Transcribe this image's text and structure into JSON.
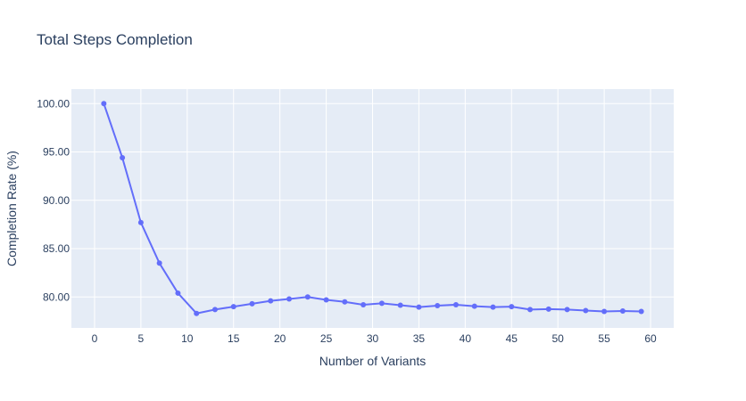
{
  "chart_data": {
    "type": "line",
    "title": "Total Steps Completion",
    "xlabel": "Number of Variants",
    "ylabel": "Completion Rate (%)",
    "xlim": [
      -2.5,
      62.5
    ],
    "ylim": [
      76.8,
      101.5
    ],
    "x_ticks": [
      0,
      5,
      10,
      15,
      20,
      25,
      30,
      35,
      40,
      45,
      50,
      55,
      60
    ],
    "x_tick_labels": [
      "0",
      "5",
      "10",
      "15",
      "20",
      "25",
      "30",
      "35",
      "40",
      "45",
      "50",
      "55",
      "60"
    ],
    "y_ticks": [
      80,
      85,
      90,
      95,
      100
    ],
    "y_tick_labels": [
      "80.00",
      "85.00",
      "90.00",
      "95.00",
      "100.00"
    ],
    "grid": true,
    "plot_bgcolor": "#E5ECF6",
    "grid_color": "#ffffff",
    "line_color": "#636EFA",
    "series": [
      {
        "x": [
          1,
          3,
          5,
          7,
          9,
          11,
          13,
          15,
          17,
          19,
          21,
          23,
          25,
          27,
          29,
          31,
          33,
          35,
          37,
          39,
          41,
          43,
          45,
          47,
          49,
          51,
          53,
          55,
          57,
          59
        ],
        "values": [
          100.0,
          94.4,
          87.7,
          83.5,
          80.4,
          78.3,
          78.7,
          79.0,
          79.3,
          79.6,
          79.8,
          80.0,
          79.7,
          79.5,
          79.2,
          79.35,
          79.15,
          78.95,
          79.1,
          79.2,
          79.05,
          78.95,
          79.0,
          78.7,
          78.75,
          78.7,
          78.6,
          78.5,
          78.55,
          78.5
        ]
      }
    ]
  }
}
